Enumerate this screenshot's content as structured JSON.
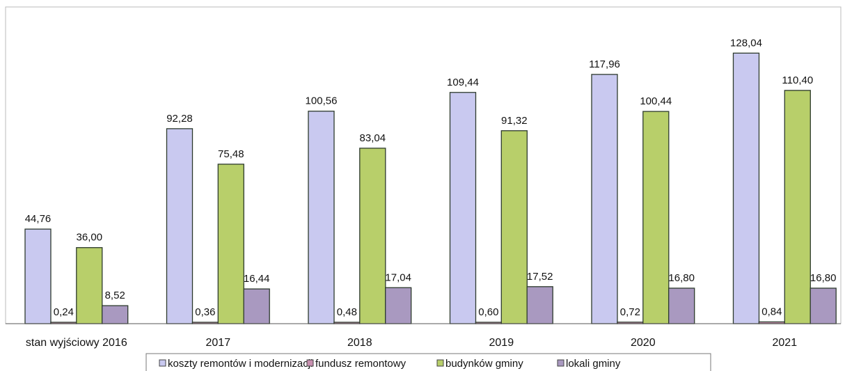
{
  "chart_data": {
    "type": "bar",
    "categories": [
      "stan wyjściowy 2016",
      "2017",
      "2018",
      "2019",
      "2020",
      "2021"
    ],
    "series": [
      {
        "name": "koszty remontów i modernizacji",
        "values": [
          44.76,
          92.28,
          100.56,
          109.44,
          117.96,
          128.04
        ],
        "labels": [
          "44,76",
          "92,28",
          "100,56",
          "109,44",
          "117,96",
          "128,04"
        ]
      },
      {
        "name": "fundusz remontowy",
        "values": [
          0.24,
          0.36,
          0.48,
          0.6,
          0.72,
          0.84
        ],
        "labels": [
          "0,24",
          "0,36",
          "0,48",
          "0,60",
          "0,72",
          "0,84"
        ]
      },
      {
        "name": "budynków gminy",
        "values": [
          36.0,
          75.48,
          83.04,
          91.32,
          100.44,
          110.4
        ],
        "labels": [
          "36,00",
          "75,48",
          "83,04",
          "91,32",
          "100,44",
          "110,40"
        ]
      },
      {
        "name": "lokali gminy",
        "values": [
          8.52,
          16.44,
          17.04,
          17.52,
          16.8,
          16.8
        ],
        "labels": [
          "8,52",
          "16,44",
          "17,04",
          "17,52",
          "16,80",
          "16,80"
        ]
      }
    ],
    "colors": [
      "#c9c9f0",
      "#c990b0",
      "#b8cf6a",
      "#a999c0"
    ],
    "ylim": [
      0,
      140
    ],
    "grid": false,
    "legend_position": "bottom",
    "title": "",
    "xlabel": "",
    "ylabel": ""
  }
}
